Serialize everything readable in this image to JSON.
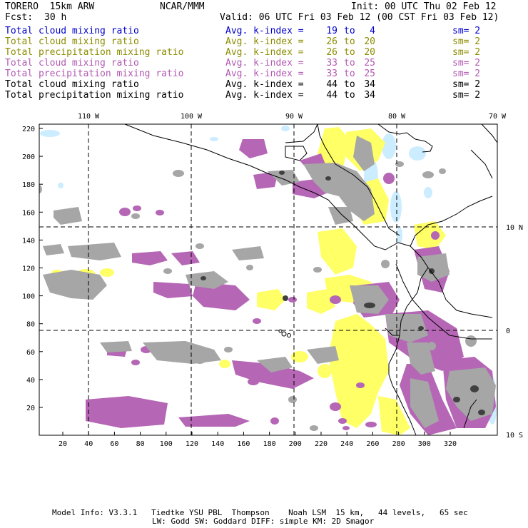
{
  "header": {
    "model": "TORERO  15km ARW",
    "center": "NCAR/MMM",
    "init": "Init: 00 UTC Thu 02 Feb 12",
    "fcst_label": "Fcst:",
    "fcst_value": "30 h",
    "valid": "Valid: 06 UTC Fri 03 Feb 12 (00 CST Fri 03 Feb 12)"
  },
  "legend": [
    {
      "name": "Total cloud mixing ratio",
      "avg": "Avg. k-index =",
      "k1": "19",
      "to": "to",
      "k2": "4",
      "sm": "sm= 2",
      "color": "#0000cc"
    },
    {
      "name": "Total cloud mixing ratio",
      "avg": "Avg. k-index =",
      "k1": "26",
      "to": "to",
      "k2": "20",
      "sm": "sm= 2",
      "color": "#8c8c00"
    },
    {
      "name": "Total precipitation mixing ratio",
      "avg": "Avg. k-index =",
      "k1": "26",
      "to": "to",
      "k2": "20",
      "sm": "sm= 2",
      "color": "#8c8c00"
    },
    {
      "name": "Total cloud mixing ratio",
      "avg": "Avg. k-index =",
      "k1": "33",
      "to": "to",
      "k2": "25",
      "sm": "sm= 2",
      "color": "#b25ab2"
    },
    {
      "name": "Total precipitation mixing ratio",
      "avg": "Avg. k-index =",
      "k1": "33",
      "to": "to",
      "k2": "25",
      "sm": "sm= 2",
      "color": "#b25ab2"
    },
    {
      "name": "Total cloud mixing ratio",
      "avg": "Avg. k-index =",
      "k1": "44",
      "to": "to",
      "k2": "34",
      "sm": "sm= 2",
      "color": "#000000"
    },
    {
      "name": "Total precipitation mixing ratio",
      "avg": "Avg. k-index =",
      "k1": "44",
      "to": "to",
      "k2": "34",
      "sm": "sm= 2",
      "color": "#000000"
    }
  ],
  "map": {
    "x_ticks": [
      "20",
      "40",
      "60",
      "80",
      "100",
      "120",
      "140",
      "160",
      "180",
      "200",
      "220",
      "240",
      "260",
      "280",
      "300",
      "320"
    ],
    "y_ticks": [
      "20",
      "40",
      "60",
      "80",
      "100",
      "120",
      "140",
      "160",
      "180",
      "200",
      "220"
    ],
    "lon_labels": [
      "110 W",
      "100 W",
      "90 W",
      "80 W",
      "70 W"
    ],
    "lat_labels": [
      "10 N",
      "0",
      "10 S"
    ],
    "colors": {
      "light_blue": "#ccecff",
      "yellow": "#ffff66",
      "purple": "#b566b5",
      "gray": "#a6a6a6",
      "dark": "#404040",
      "coast": "#000000"
    }
  },
  "footer": {
    "line1": "Model Info: V3.3.1   Tiedtke YSU PBL  Thompson    Noah LSM  15 km,   44 levels,   65 sec",
    "line2": "LW: Godd SW: Goddard DIFF: simple KM: 2D Smagor"
  }
}
